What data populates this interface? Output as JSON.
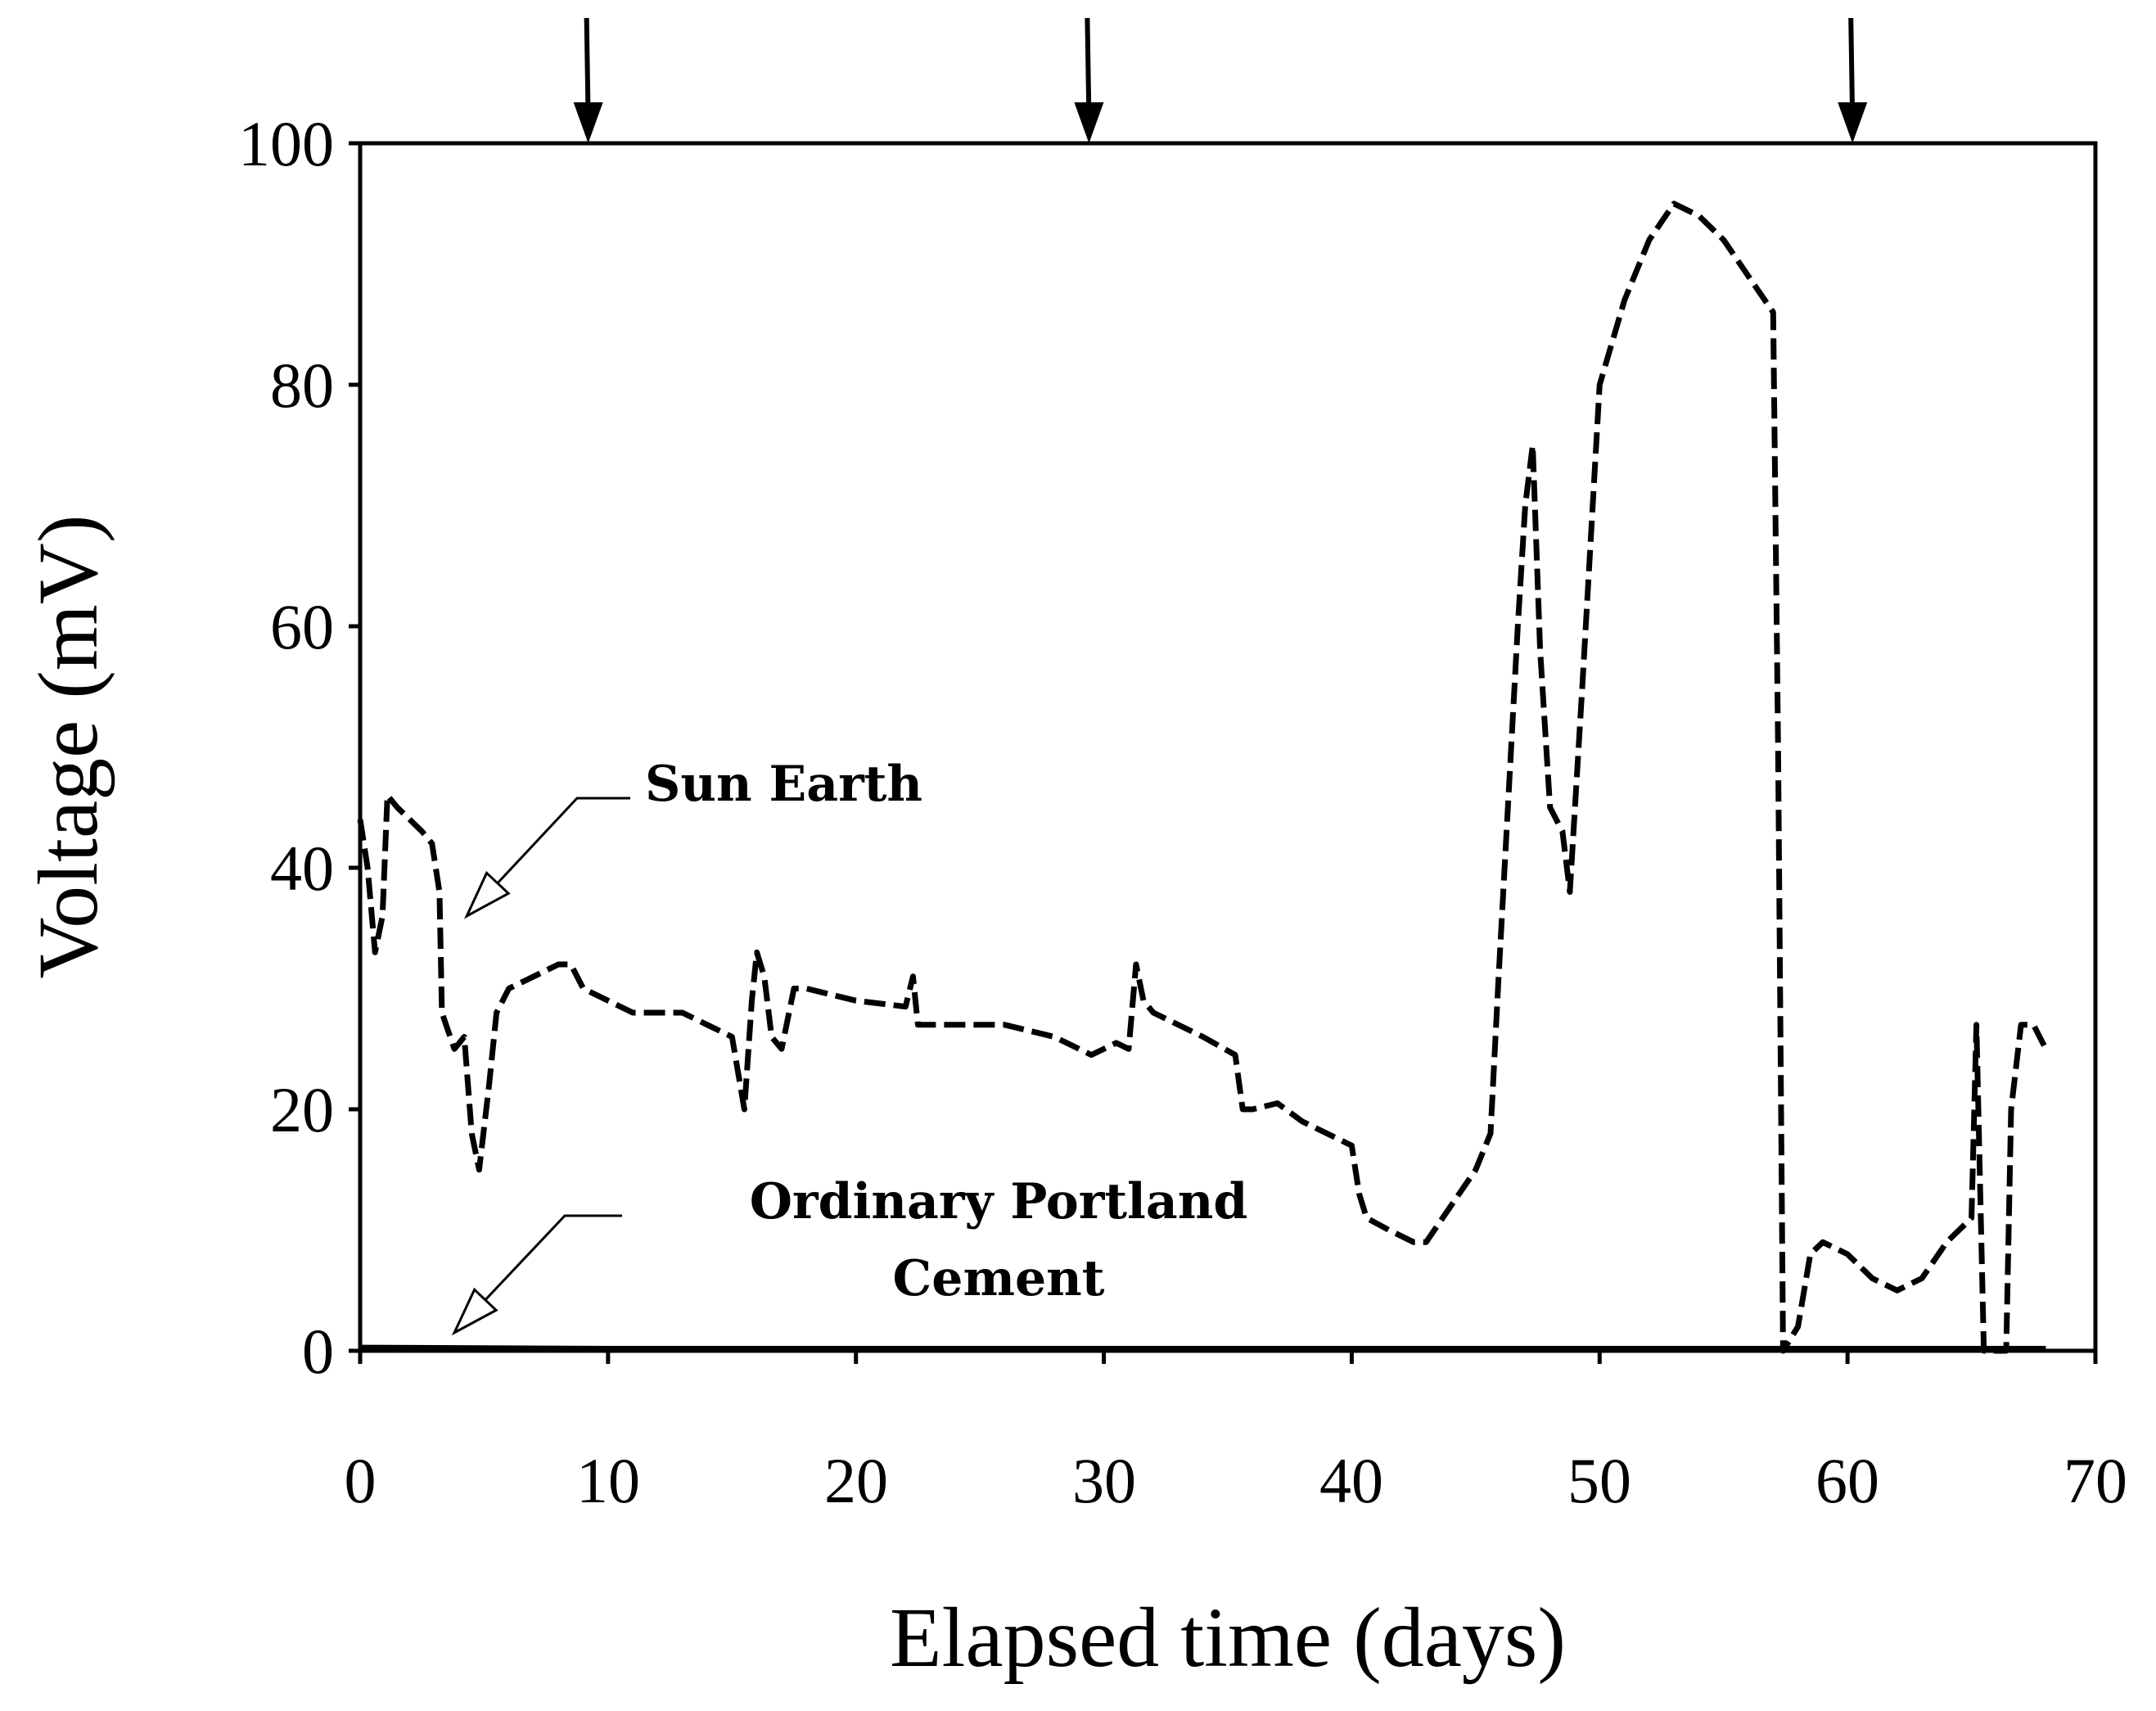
{
  "chart_data": {
    "type": "line",
    "title": "",
    "xlabel": "Elapsed time (days)",
    "ylabel": "Voltage (mV)",
    "xlim": [
      0,
      70
    ],
    "ylim": [
      0,
      100
    ],
    "x_ticks": [
      "0",
      "10",
      "20",
      "30",
      "40",
      "50",
      "60",
      "70"
    ],
    "y_ticks": [
      "0",
      "20",
      "40",
      "60",
      "80",
      "100"
    ],
    "grid": false,
    "event_markers_days": [
      9.2,
      29.4,
      60.2
    ],
    "annotations": [
      {
        "text": "Sun Earth",
        "points_to": [
          4.3,
          36
        ]
      },
      {
        "text_lines": [
          "Ordinary Portland",
          "Cement"
        ],
        "points_to": [
          3.8,
          1.5
        ]
      }
    ],
    "series": [
      {
        "name": "Sun Earth",
        "style": "dashed",
        "points": [
          [
            0,
            44
          ],
          [
            0.3,
            40
          ],
          [
            0.6,
            33
          ],
          [
            0.9,
            36
          ],
          [
            1.1,
            46
          ],
          [
            1.5,
            45
          ],
          [
            2,
            44
          ],
          [
            2.5,
            43
          ],
          [
            2.9,
            42
          ],
          [
            3.2,
            38
          ],
          [
            3.3,
            28
          ],
          [
            3.8,
            25
          ],
          [
            4.2,
            26
          ],
          [
            4.5,
            18
          ],
          [
            4.8,
            15
          ],
          [
            5.2,
            22
          ],
          [
            5.5,
            28
          ],
          [
            6,
            30
          ],
          [
            7,
            31
          ],
          [
            8,
            32
          ],
          [
            8.5,
            32
          ],
          [
            9,
            30
          ],
          [
            10,
            29
          ],
          [
            11,
            28
          ],
          [
            12,
            28
          ],
          [
            13,
            28
          ],
          [
            14,
            27
          ],
          [
            15,
            26
          ],
          [
            15.5,
            20
          ],
          [
            15.8,
            29
          ],
          [
            16,
            33
          ],
          [
            16.3,
            31
          ],
          [
            16.6,
            26
          ],
          [
            17,
            25
          ],
          [
            17.5,
            30
          ],
          [
            18,
            30
          ],
          [
            20,
            29
          ],
          [
            22,
            28.5
          ],
          [
            22.3,
            31
          ],
          [
            22.5,
            27
          ],
          [
            24,
            27
          ],
          [
            26,
            27
          ],
          [
            28,
            26
          ],
          [
            29.5,
            24.5
          ],
          [
            30.5,
            25.5
          ],
          [
            31,
            25
          ],
          [
            31.3,
            32
          ],
          [
            31.6,
            29
          ],
          [
            32,
            28
          ],
          [
            34,
            26
          ],
          [
            35.3,
            24.5
          ],
          [
            35.6,
            20
          ],
          [
            36,
            20
          ],
          [
            37,
            20.5
          ],
          [
            38,
            19
          ],
          [
            39,
            18
          ],
          [
            40,
            17
          ],
          [
            40.3,
            13
          ],
          [
            40.6,
            11
          ],
          [
            41.5,
            10
          ],
          [
            42.5,
            9
          ],
          [
            43,
            9
          ],
          [
            44,
            12
          ],
          [
            45,
            15
          ],
          [
            45.6,
            18
          ],
          [
            45.9,
            30
          ],
          [
            46.3,
            45
          ],
          [
            46.7,
            60
          ],
          [
            47,
            70
          ],
          [
            47.3,
            75
          ],
          [
            47.6,
            58
          ],
          [
            48,
            45
          ],
          [
            48.5,
            43
          ],
          [
            48.8,
            38
          ],
          [
            49.3,
            55
          ],
          [
            50,
            80
          ],
          [
            51,
            87
          ],
          [
            52,
            92
          ],
          [
            53,
            95
          ],
          [
            54,
            94
          ],
          [
            55,
            92
          ],
          [
            56,
            89
          ],
          [
            57,
            86
          ],
          [
            57.2,
            50
          ],
          [
            57.4,
            0
          ],
          [
            58,
            2
          ],
          [
            58.5,
            8
          ],
          [
            59,
            9
          ],
          [
            60,
            8
          ],
          [
            61,
            6
          ],
          [
            62,
            5
          ],
          [
            63,
            6
          ],
          [
            64,
            9
          ],
          [
            65,
            11
          ],
          [
            65.2,
            27
          ],
          [
            65.5,
            0
          ],
          [
            66.4,
            0
          ],
          [
            66.6,
            20
          ],
          [
            67,
            27
          ],
          [
            67.5,
            27
          ],
          [
            68,
            25
          ]
        ]
      },
      {
        "name": "Ordinary Portland Cement",
        "style": "solid",
        "points": [
          [
            0,
            0.3
          ],
          [
            10,
            0.2
          ],
          [
            20,
            0.2
          ],
          [
            30,
            0.2
          ],
          [
            40,
            0.2
          ],
          [
            50,
            0.2
          ],
          [
            60,
            0.2
          ],
          [
            68,
            0.2
          ]
        ]
      }
    ]
  }
}
